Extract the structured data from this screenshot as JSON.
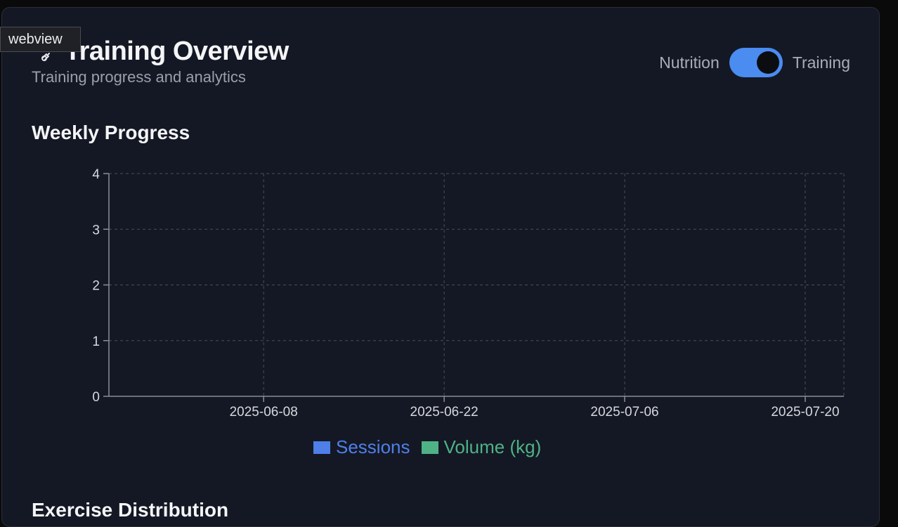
{
  "webview_label": "webview",
  "header": {
    "icon": "dumbbell-icon",
    "title": "Training Overview",
    "subtitle": "Training progress and analytics"
  },
  "toggle": {
    "left_label": "Nutrition",
    "right_label": "Training",
    "state": "Training"
  },
  "sections": {
    "weekly_progress": "Weekly Progress",
    "exercise_distribution": "Exercise Distribution"
  },
  "colors": {
    "sessions": "#4f7fe8",
    "volume": "#4fb286",
    "toggle_on": "#4a8cf0"
  },
  "chart_data": {
    "type": "line",
    "title": "Weekly Progress",
    "x_ticks": [
      "2025-06-08",
      "2025-06-22",
      "2025-07-06",
      "2025-07-20"
    ],
    "xlim": [
      "2025-05-27",
      "2025-07-23"
    ],
    "ylim": [
      0,
      4
    ],
    "y_ticks": [
      0,
      1,
      2,
      3,
      4
    ],
    "grid": true,
    "legend_position": "bottom",
    "series": [
      {
        "name": "Sessions",
        "values": []
      },
      {
        "name": "Volume (kg)",
        "values": []
      }
    ]
  }
}
